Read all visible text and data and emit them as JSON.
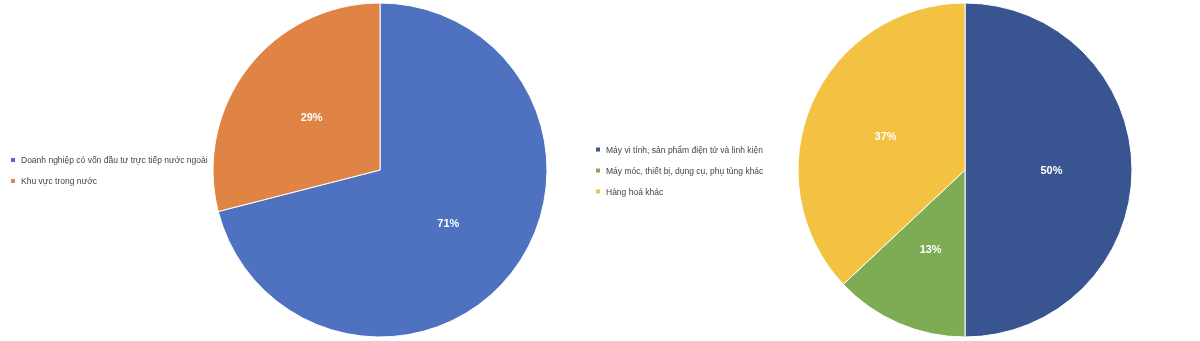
{
  "chart_data": [
    {
      "type": "pie",
      "categories": [
        "Doanh nghiệp có vốn đầu tư trực tiếp nước ngoài",
        "Khu vực trong nước"
      ],
      "values": [
        71,
        29
      ],
      "value_labels": [
        "71%",
        "29%"
      ],
      "colors": [
        "#4e72c0",
        "#df8444"
      ],
      "legend": "left"
    },
    {
      "type": "pie",
      "categories": [
        "Máy vi tính, sản phẩm điện tử và linh kiện",
        "Máy móc, thiết bị, dụng cụ, phụ tùng khác",
        "Hàng hoá khác"
      ],
      "values": [
        50,
        13,
        37
      ],
      "value_labels": [
        "50%",
        "13%",
        "37%"
      ],
      "colors": [
        "#385592",
        "#7eac55",
        "#f4c242"
      ],
      "legend": "left"
    }
  ]
}
